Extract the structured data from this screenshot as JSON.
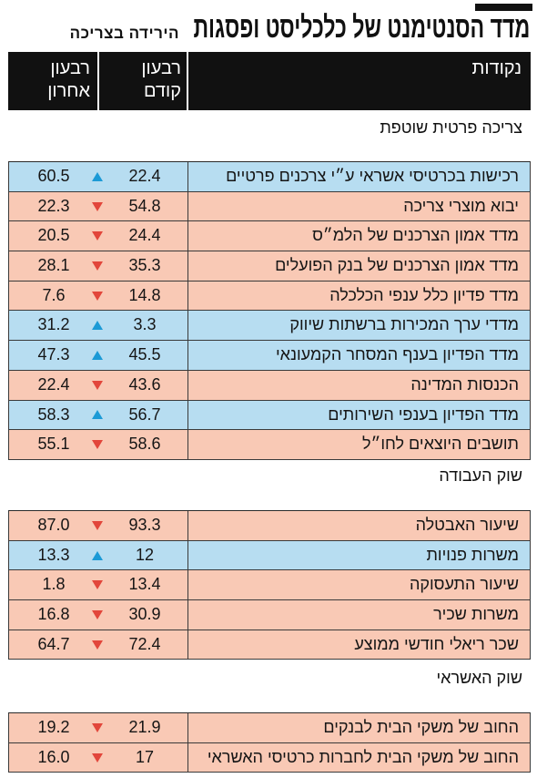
{
  "colors": {
    "header_bg": "#111111",
    "title_bar": "#111111",
    "up_row": "#b7ddf1",
    "down_row": "#f9c9b5",
    "up_arrow": "#1c9ad6",
    "down_arrow": "#e2463b"
  },
  "chart_data": {
    "type": "table",
    "title": "מדד הסנטימנט של כלכליסט ופסגות",
    "subtitle": "הירידה בצריכה",
    "columns": {
      "label": "נקודות",
      "prev": [
        "רבעון",
        "קודם"
      ],
      "last": [
        "רבעון",
        "אחרון"
      ]
    },
    "sections": [
      {
        "title": "צריכה פרטית שוטפת",
        "rows": [
          {
            "label": "רכישות בכרטיסי אשראי ע״י צרכנים פרטיים",
            "prev": "22.4",
            "last": "60.5",
            "trend": "up"
          },
          {
            "label": "יבוא מוצרי צריכה",
            "prev": "54.8",
            "last": "22.3",
            "trend": "down"
          },
          {
            "label": "מדד אמון הצרכנים של הלמ״ס",
            "prev": "24.4",
            "last": "20.5",
            "trend": "down"
          },
          {
            "label": "מדד אמון הצרכנים של בנק הפועלים",
            "prev": "35.3",
            "last": "28.1",
            "trend": "down"
          },
          {
            "label": "מדד פדיון כלל ענפי הכלכלה",
            "prev": "14.8",
            "last": "7.6",
            "trend": "down"
          },
          {
            "label": "מדדי ערך המכירות ברשתות שיווק",
            "prev": "3.3",
            "last": "31.2",
            "trend": "up"
          },
          {
            "label": "מדד הפדיון בענף המסחר הקמעונאי",
            "prev": "45.5",
            "last": "47.3",
            "trend": "up"
          },
          {
            "label": "הכנסות המדינה",
            "prev": "43.6",
            "last": "22.4",
            "trend": "down"
          },
          {
            "label": "מדד הפדיון בענפי השירותים",
            "prev": "56.7",
            "last": "58.3",
            "trend": "up"
          },
          {
            "label": "תושבים היוצאים לחו״ל",
            "prev": "58.6",
            "last": "55.1",
            "trend": "down"
          }
        ]
      },
      {
        "title": "שוק העבודה",
        "rows": [
          {
            "label": "שיעור האבטלה",
            "prev": "93.3",
            "last": "87.0",
            "trend": "down"
          },
          {
            "label": "משרות פנויות",
            "prev": "12",
            "last": "13.3",
            "trend": "up"
          },
          {
            "label": "שיעור התעסוקה",
            "prev": "13.4",
            "last": "1.8",
            "trend": "down"
          },
          {
            "label": "משרות שכיר",
            "prev": "30.9",
            "last": "16.8",
            "trend": "down"
          },
          {
            "label": "שכר ריאלי חודשי ממוצע",
            "prev": "72.4",
            "last": "64.7",
            "trend": "down"
          }
        ]
      },
      {
        "title": "שוק האשראי",
        "rows": [
          {
            "label": "החוב של משקי הבית לבנקים",
            "prev": "21.9",
            "last": "19.2",
            "trend": "down"
          },
          {
            "label": "החוב של משקי הבית לחברות כרטיסי האשראי",
            "prev": "17",
            "last": "16.0",
            "trend": "down"
          }
        ]
      }
    ]
  }
}
